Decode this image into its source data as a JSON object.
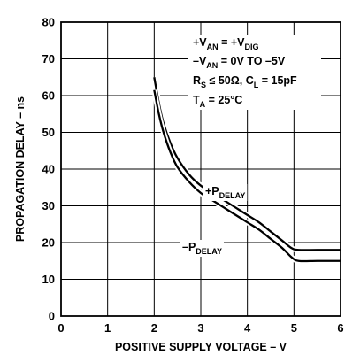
{
  "chart_data": {
    "type": "line",
    "xlabel": "POSITIVE SUPPLY VOLTAGE – V",
    "ylabel": "PROPAGATION DELAY – ns",
    "xlim": [
      0,
      6
    ],
    "ylim": [
      0,
      80
    ],
    "xticks": [
      0,
      1,
      2,
      3,
      4,
      5,
      6
    ],
    "yticks": [
      0,
      10,
      20,
      30,
      40,
      50,
      60,
      70,
      80
    ],
    "grid": true,
    "series": [
      {
        "name": "+PDELAY",
        "name_main": "+P",
        "name_sub": "DELAY",
        "x": [
          2.0,
          2.1,
          2.2,
          2.35,
          2.5,
          2.75,
          3.0,
          3.25,
          3.5,
          3.75,
          4.0,
          4.25,
          4.5,
          4.75,
          4.95,
          5.1,
          5.5,
          6.0
        ],
        "y": [
          65,
          58,
          52.5,
          47,
          43,
          38.5,
          35.5,
          33.5,
          31.5,
          29.5,
          27.5,
          25.5,
          23,
          20.5,
          18.5,
          18,
          18,
          18
        ]
      },
      {
        "name": "−PDELAY",
        "name_main": "–P",
        "name_sub": "DELAY",
        "x": [
          2.0,
          2.1,
          2.2,
          2.35,
          2.5,
          2.75,
          3.0,
          3.25,
          3.5,
          3.75,
          4.0,
          4.25,
          4.5,
          4.75,
          4.95,
          5.1,
          5.5,
          6.0
        ],
        "y": [
          61.5,
          55,
          50,
          44.5,
          40.5,
          36.5,
          33.5,
          31.5,
          29.5,
          27.5,
          25.5,
          23.5,
          21,
          18.5,
          16,
          15,
          15,
          15
        ]
      }
    ],
    "conditions": [
      {
        "parts": [
          {
            "t": "+V",
            "sub": false
          },
          {
            "t": "AN",
            "sub": true
          },
          {
            "t": " = +V",
            "sub": false
          },
          {
            "t": "DIG",
            "sub": true
          }
        ]
      },
      {
        "parts": [
          {
            "t": "–V",
            "sub": false
          },
          {
            "t": "AN",
            "sub": true
          },
          {
            "t": " = 0V  TO –5V",
            "sub": false
          }
        ]
      },
      {
        "parts": [
          {
            "t": "R",
            "sub": false
          },
          {
            "t": "S",
            "sub": true
          },
          {
            "t": " ≤ 50Ω, C",
            "sub": false
          },
          {
            "t": "L",
            "sub": true
          },
          {
            "t": " = 15pF",
            "sub": false
          }
        ]
      },
      {
        "parts": [
          {
            "t": "T",
            "sub": false
          },
          {
            "t": "A",
            "sub": true
          },
          {
            "t": " = 25°C",
            "sub": false
          }
        ]
      }
    ]
  }
}
